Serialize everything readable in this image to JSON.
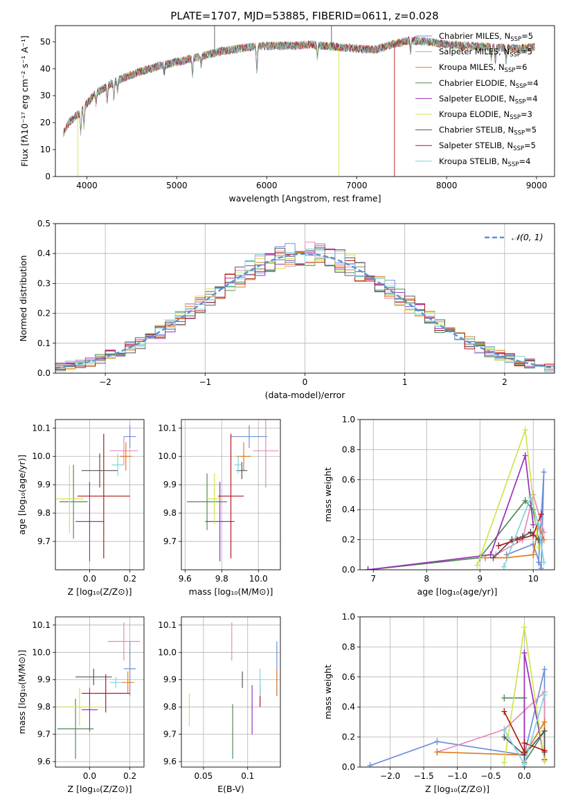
{
  "title": "PLATE=1707, MJD=53885, FIBERID=0611, z=0.028",
  "colors": {
    "Chabrier MILES": "#6d8fd8",
    "Salpeter MILES": "#e48ab8",
    "Kroupa MILES": "#e07b1f",
    "Chabrier ELODIE": "#4f8a57",
    "Salpeter ELODIE": "#9a2fb8",
    "Kroupa ELODIE": "#cfe44e",
    "Chabrier STELIB": "#555555",
    "Salpeter STELIB": "#b01a1a",
    "Kroupa STELIB": "#7fd4d9",
    "normal": "#5a8fd4"
  },
  "legend_spectrum": {
    "entries": [
      {
        "name": "Chabrier MILES",
        "n": "5"
      },
      {
        "name": "Salpeter MILES",
        "n": "5"
      },
      {
        "name": "Kroupa MILES",
        "n": "6"
      },
      {
        "name": "Chabrier ELODIE",
        "n": "4"
      },
      {
        "name": "Salpeter ELODIE",
        "n": "4"
      },
      {
        "name": "Kroupa ELODIE",
        "n": "3"
      },
      {
        "name": "Chabrier STELIB",
        "n": "5"
      },
      {
        "name": "Salpeter STELIB",
        "n": "5"
      },
      {
        "name": "Kroupa STELIB",
        "n": "4"
      }
    ],
    "nssp_label": "N",
    "nssp_sub": "SSP",
    "eq": "="
  },
  "legend_hist": "𝒩(0, 1)",
  "chart_data": [
    {
      "id": "spectrum",
      "type": "line",
      "xlabel": "wavelength [Angstrom, rest frame]",
      "ylabel": "Flux [fλ10⁻¹⁷ erg cm⁻² s⁻¹ A⁻¹]",
      "xlim": [
        3650,
        9200
      ],
      "ylim": [
        0,
        56
      ],
      "xticks": [
        4000,
        5000,
        6000,
        7000,
        8000,
        9000
      ],
      "yticks": [
        0,
        10,
        20,
        30,
        40,
        50
      ],
      "continuum": [
        [
          3740,
          16
        ],
        [
          3800,
          20
        ],
        [
          3900,
          23
        ],
        [
          4000,
          27
        ],
        [
          4100,
          31
        ],
        [
          4200,
          33
        ],
        [
          4300,
          35
        ],
        [
          4400,
          36.5
        ],
        [
          4600,
          39
        ],
        [
          4800,
          41
        ],
        [
          5000,
          42.5
        ],
        [
          5200,
          44
        ],
        [
          5500,
          46.5
        ],
        [
          5800,
          48
        ],
        [
          6000,
          48.5
        ],
        [
          6300,
          48.5
        ],
        [
          6500,
          49
        ],
        [
          6800,
          48
        ],
        [
          7000,
          47.5
        ],
        [
          7200,
          47
        ],
        [
          7400,
          49
        ],
        [
          7600,
          50.5
        ],
        [
          7800,
          50
        ],
        [
          8000,
          49
        ],
        [
          8500,
          48
        ],
        [
          8800,
          47.5
        ],
        [
          8980,
          48
        ]
      ],
      "absorption": [
        [
          3933,
          8
        ],
        [
          3968,
          7
        ],
        [
          4101,
          4
        ],
        [
          4227,
          5
        ],
        [
          4300,
          6
        ],
        [
          4340,
          4
        ],
        [
          4861,
          3
        ],
        [
          5175,
          6
        ],
        [
          5270,
          3
        ],
        [
          5890,
          9
        ],
        [
          6563,
          5
        ],
        [
          7600,
          4
        ],
        [
          8498,
          4
        ],
        [
          8542,
          5
        ],
        [
          8662,
          5
        ]
      ],
      "spikes": [
        {
          "series": "Kroupa ELODIE",
          "x": 3900,
          "to": 0
        },
        {
          "series": "Chabrier STELIB",
          "x": 5420,
          "to": 56
        },
        {
          "series": "Kroupa ELODIE",
          "x": 6800,
          "to": 0
        },
        {
          "series": "Salpeter STELIB",
          "x": 7420,
          "to": 0
        },
        {
          "series": "Chabrier STELIB",
          "x": 6720,
          "to": 56
        }
      ]
    },
    {
      "id": "residuals",
      "type": "bar",
      "xlabel": "(data-model)/error",
      "ylabel": "Normed distribution",
      "xlim": [
        -2.5,
        2.5
      ],
      "ylim": [
        0,
        0.5
      ],
      "xticks": [
        -2,
        -1,
        0,
        1,
        2
      ],
      "yticks": [
        0.0,
        0.1,
        0.2,
        0.3,
        0.4,
        0.5
      ],
      "bin_width": 0.1
    },
    {
      "id": "age-vs-Z",
      "type": "scatter",
      "xlabel": "Z [log₁₀(Z/Z⊙)]",
      "ylabel": "age  [log₁₀(age/yr)]",
      "xlim": [
        -0.17,
        0.27
      ],
      "ylim": [
        9.6,
        10.13
      ],
      "xticks": [
        0.0,
        0.2
      ],
      "yticks": [
        9.7,
        9.8,
        9.9,
        10.0,
        10.1
      ],
      "points": [
        {
          "series": "Chabrier MILES",
          "x": 0.2,
          "xerr": 0.03,
          "y": 10.07,
          "yerr": 0.04
        },
        {
          "series": "Salpeter MILES",
          "x": 0.17,
          "xerr": 0.07,
          "y": 10.02,
          "yerr": 0.05
        },
        {
          "series": "Kroupa MILES",
          "x": 0.18,
          "xerr": 0.03,
          "y": 10.0,
          "yerr": 0.05
        },
        {
          "series": "Chabrier ELODIE",
          "x": -0.08,
          "xerr": 0.07,
          "y": 9.84,
          "yerr": 0.13
        },
        {
          "series": "Salpeter ELODIE",
          "x": 0.0,
          "xerr": 0.07,
          "y": 9.77,
          "yerr": 0.14
        },
        {
          "series": "Kroupa ELODIE",
          "x": -0.1,
          "xerr": 0.07,
          "y": 9.85,
          "yerr": 0.12
        },
        {
          "series": "Chabrier STELIB",
          "x": 0.05,
          "xerr": 0.09,
          "y": 9.95,
          "yerr": 0.06
        },
        {
          "series": "Salpeter STELIB",
          "x": 0.07,
          "xerr": 0.13,
          "y": 9.86,
          "yerr": 0.22
        },
        {
          "series": "Kroupa STELIB",
          "x": 0.14,
          "xerr": 0.03,
          "y": 9.97,
          "yerr": 0.04
        }
      ]
    },
    {
      "id": "age-vs-mass",
      "type": "scatter",
      "xlabel": "mass [log₁₀(M/M⊙)]",
      "ylabel": "",
      "xlim": [
        9.58,
        10.12
      ],
      "ylim": [
        9.6,
        10.13
      ],
      "xticks": [
        9.6,
        9.8,
        10.0
      ],
      "yticks": [
        9.7,
        9.8,
        9.9,
        10.0,
        10.1
      ],
      "points": [
        {
          "series": "Chabrier MILES",
          "x": 9.95,
          "xerr": 0.1,
          "y": 10.07,
          "yerr": 0.04
        },
        {
          "series": "Salpeter MILES",
          "x": 10.04,
          "xerr": 0.07,
          "y": 10.02,
          "yerr": 0.13
        },
        {
          "series": "Kroupa MILES",
          "x": 9.92,
          "xerr": 0.04,
          "y": 10.0,
          "yerr": 0.05
        },
        {
          "series": "Chabrier ELODIE",
          "x": 9.72,
          "xerr": 0.11,
          "y": 9.84,
          "yerr": 0.1
        },
        {
          "series": "Salpeter ELODIE",
          "x": 9.79,
          "xerr": 0.08,
          "y": 9.77,
          "yerr": 0.14
        },
        {
          "series": "Kroupa ELODIE",
          "x": 9.76,
          "xerr": 0.04,
          "y": 9.85,
          "yerr": 0.09
        },
        {
          "series": "Chabrier STELIB",
          "x": 9.91,
          "xerr": 0.03,
          "y": 9.95,
          "yerr": 0.03
        },
        {
          "series": "Salpeter STELIB",
          "x": 9.85,
          "xerr": 0.07,
          "y": 9.86,
          "yerr": 0.22
        },
        {
          "series": "Kroupa STELIB",
          "x": 9.89,
          "xerr": 0.02,
          "y": 9.97,
          "yerr": 0.03
        }
      ]
    },
    {
      "id": "mass-weight-vs-age",
      "type": "line",
      "xlabel": "age  [log₁₀(age/yr)]",
      "ylabel": "mass weight",
      "xlim": [
        6.75,
        10.4
      ],
      "ylim": [
        0,
        1
      ],
      "xticks": [
        7,
        8,
        9,
        10
      ],
      "yticks": [
        0.0,
        0.2,
        0.4,
        0.6,
        0.8,
        1.0
      ],
      "series": [
        {
          "name": "Chabrier MILES",
          "points": [
            [
              9.5,
              0.1
            ],
            [
              10.0,
              0.17
            ],
            [
              10.15,
              0.01
            ],
            [
              10.2,
              0.65
            ],
            [
              10.1,
              0.05
            ]
          ]
        },
        {
          "name": "Salpeter MILES",
          "points": [
            [
              9.3,
              0.1
            ],
            [
              9.8,
              0.2
            ],
            [
              10.0,
              0.5
            ],
            [
              10.2,
              0.25
            ]
          ]
        },
        {
          "name": "Kroupa MILES",
          "points": [
            [
              9.1,
              0.08
            ],
            [
              9.5,
              0.08
            ],
            [
              10.0,
              0.1
            ],
            [
              10.1,
              0.3
            ],
            [
              10.2,
              0.2
            ]
          ]
        },
        {
          "name": "Chabrier ELODIE",
          "points": [
            [
              6.9,
              0.0
            ],
            [
              9.0,
              0.08
            ],
            [
              9.85,
              0.46
            ],
            [
              10.0,
              0.4
            ],
            [
              10.1,
              0.2
            ]
          ]
        },
        {
          "name": "Salpeter ELODIE",
          "points": [
            [
              6.9,
              0.0
            ],
            [
              9.2,
              0.1
            ],
            [
              9.85,
              0.76
            ],
            [
              10.0,
              0.3
            ]
          ]
        },
        {
          "name": "Kroupa ELODIE",
          "points": [
            [
              8.95,
              0.03
            ],
            [
              9.85,
              0.93
            ],
            [
              10.1,
              0.15
            ]
          ]
        },
        {
          "name": "Chabrier STELIB",
          "points": [
            [
              9.25,
              0.08
            ],
            [
              9.6,
              0.2
            ],
            [
              9.8,
              0.22
            ],
            [
              9.95,
              0.25
            ],
            [
              10.1,
              0.2
            ]
          ]
        },
        {
          "name": "Salpeter STELIB",
          "points": [
            [
              9.35,
              0.16
            ],
            [
              9.7,
              0.2
            ],
            [
              10.0,
              0.23
            ],
            [
              10.15,
              0.37
            ]
          ]
        },
        {
          "name": "Kroupa STELIB",
          "points": [
            [
              9.45,
              0.02
            ],
            [
              9.95,
              0.48
            ],
            [
              10.1,
              0.3
            ],
            [
              10.2,
              0.05
            ]
          ]
        }
      ]
    },
    {
      "id": "mass-vs-Z",
      "type": "scatter",
      "xlabel": "Z [log₁₀(Z/Z⊙)]",
      "ylabel": "mass [log₁₀(M/M⊙)]",
      "xlim": [
        -0.17,
        0.27
      ],
      "ylim": [
        9.58,
        10.13
      ],
      "xticks": [
        0.0,
        0.2
      ],
      "yticks": [
        9.6,
        9.7,
        9.8,
        9.9,
        10.0,
        10.1
      ],
      "points": [
        {
          "series": "Chabrier MILES",
          "x": 0.2,
          "xerr": 0.03,
          "y": 9.94,
          "yerr": 0.1
        },
        {
          "series": "Salpeter MILES",
          "x": 0.17,
          "xerr": 0.08,
          "y": 10.04,
          "yerr": 0.07
        },
        {
          "series": "Kroupa MILES",
          "x": 0.19,
          "xerr": 0.03,
          "y": 9.89,
          "yerr": 0.04
        },
        {
          "series": "Chabrier ELODIE",
          "x": -0.07,
          "xerr": 0.09,
          "y": 9.72,
          "yerr": 0.11
        },
        {
          "series": "Salpeter ELODIE",
          "x": 0.0,
          "xerr": 0.04,
          "y": 9.79,
          "yerr": 0.08
        },
        {
          "series": "Kroupa ELODIE",
          "x": -0.05,
          "xerr": 0.11,
          "y": 9.8,
          "yerr": 0.07
        },
        {
          "series": "Chabrier STELIB",
          "x": 0.02,
          "xerr": 0.09,
          "y": 9.91,
          "yerr": 0.03
        },
        {
          "series": "Salpeter STELIB",
          "x": 0.08,
          "xerr": 0.12,
          "y": 9.85,
          "yerr": 0.07
        },
        {
          "series": "Kroupa STELIB",
          "x": 0.13,
          "xerr": 0.03,
          "y": 9.89,
          "yerr": 0.02
        }
      ]
    },
    {
      "id": "mass-vs-EBV",
      "type": "scatter",
      "xlabel": "E(B-V)",
      "ylabel": "",
      "xlim": [
        0.025,
        0.137
      ],
      "ylim": [
        9.58,
        10.13
      ],
      "xticks": [
        0.05,
        0.1
      ],
      "yticks": [
        9.6,
        9.7,
        9.8,
        9.9,
        10.0,
        10.1
      ],
      "points": [
        {
          "series": "Chabrier MILES",
          "x": 0.133,
          "xerr": 0,
          "y": 9.94,
          "yerr": 0.1
        },
        {
          "series": "Salpeter MILES",
          "x": 0.082,
          "xerr": 0,
          "y": 10.04,
          "yerr": 0.07
        },
        {
          "series": "Kroupa MILES",
          "x": 0.133,
          "xerr": 0,
          "y": 9.89,
          "yerr": 0.05
        },
        {
          "series": "Chabrier ELODIE",
          "x": 0.083,
          "xerr": 0,
          "y": 9.71,
          "yerr": 0.1
        },
        {
          "series": "Salpeter ELODIE",
          "x": 0.105,
          "xerr": 0,
          "y": 9.79,
          "yerr": 0.09
        },
        {
          "series": "Kroupa ELODIE",
          "x": 0.034,
          "xerr": 0,
          "y": 9.79,
          "yerr": 0.06
        },
        {
          "series": "Chabrier STELIB",
          "x": 0.094,
          "xerr": 0,
          "y": 9.9,
          "yerr": 0.03
        },
        {
          "series": "Salpeter STELIB",
          "x": 0.114,
          "xerr": 0,
          "y": 9.84,
          "yerr": 0.04
        },
        {
          "series": "Kroupa STELIB",
          "x": 0.114,
          "xerr": 0,
          "y": 9.89,
          "yerr": 0.05
        }
      ]
    },
    {
      "id": "mass-weight-vs-Z",
      "type": "line",
      "xlabel": "Z [log₁₀(Z/Z⊙)]",
      "ylabel": "mass weight",
      "xlim": [
        -2.45,
        0.45
      ],
      "ylim": [
        0,
        1
      ],
      "xticks": [
        -2.0,
        -1.5,
        -1.0,
        -0.5,
        0.0
      ],
      "yticks": [
        0.0,
        0.2,
        0.4,
        0.6,
        0.8,
        1.0
      ],
      "series": [
        {
          "name": "Chabrier MILES",
          "points": [
            [
              -2.3,
              0.01
            ],
            [
              -1.3,
              0.17
            ],
            [
              0.0,
              0.08
            ],
            [
              0.3,
              0.65
            ],
            [
              0.3,
              0.1
            ]
          ]
        },
        {
          "name": "Salpeter MILES",
          "points": [
            [
              -1.3,
              0.1
            ],
            [
              -0.3,
              0.25
            ],
            [
              0.3,
              0.5
            ],
            [
              0.3,
              0.05
            ]
          ]
        },
        {
          "name": "Kroupa MILES",
          "points": [
            [
              -1.3,
              0.1
            ],
            [
              0.0,
              0.08
            ],
            [
              0.3,
              0.3
            ],
            [
              0.3,
              0.05
            ]
          ]
        },
        {
          "name": "Chabrier ELODIE",
          "points": [
            [
              -0.3,
              0.46
            ],
            [
              0.0,
              0.46
            ],
            [
              0.0,
              0.03
            ],
            [
              0.3,
              0.24
            ]
          ]
        },
        {
          "name": "Salpeter ELODIE",
          "points": [
            [
              0.0,
              0.0
            ],
            [
              0.0,
              0.76
            ],
            [
              0.3,
              0.05
            ]
          ]
        },
        {
          "name": "Kroupa ELODIE",
          "points": [
            [
              -0.3,
              0.03
            ],
            [
              0.0,
              0.93
            ],
            [
              0.3,
              0.04
            ]
          ]
        },
        {
          "name": "Chabrier STELIB",
          "points": [
            [
              -0.3,
              0.2
            ],
            [
              0.0,
              0.08
            ],
            [
              0.3,
              0.24
            ],
            [
              0.3,
              0.1
            ]
          ]
        },
        {
          "name": "Salpeter STELIB",
          "points": [
            [
              -0.3,
              0.37
            ],
            [
              0.0,
              0.1
            ],
            [
              0.0,
              0.16
            ],
            [
              0.3,
              0.11
            ]
          ]
        },
        {
          "name": "Kroupa STELIB",
          "points": [
            [
              -0.3,
              0.25
            ],
            [
              0.0,
              0.02
            ],
            [
              0.3,
              0.48
            ]
          ]
        }
      ]
    }
  ]
}
